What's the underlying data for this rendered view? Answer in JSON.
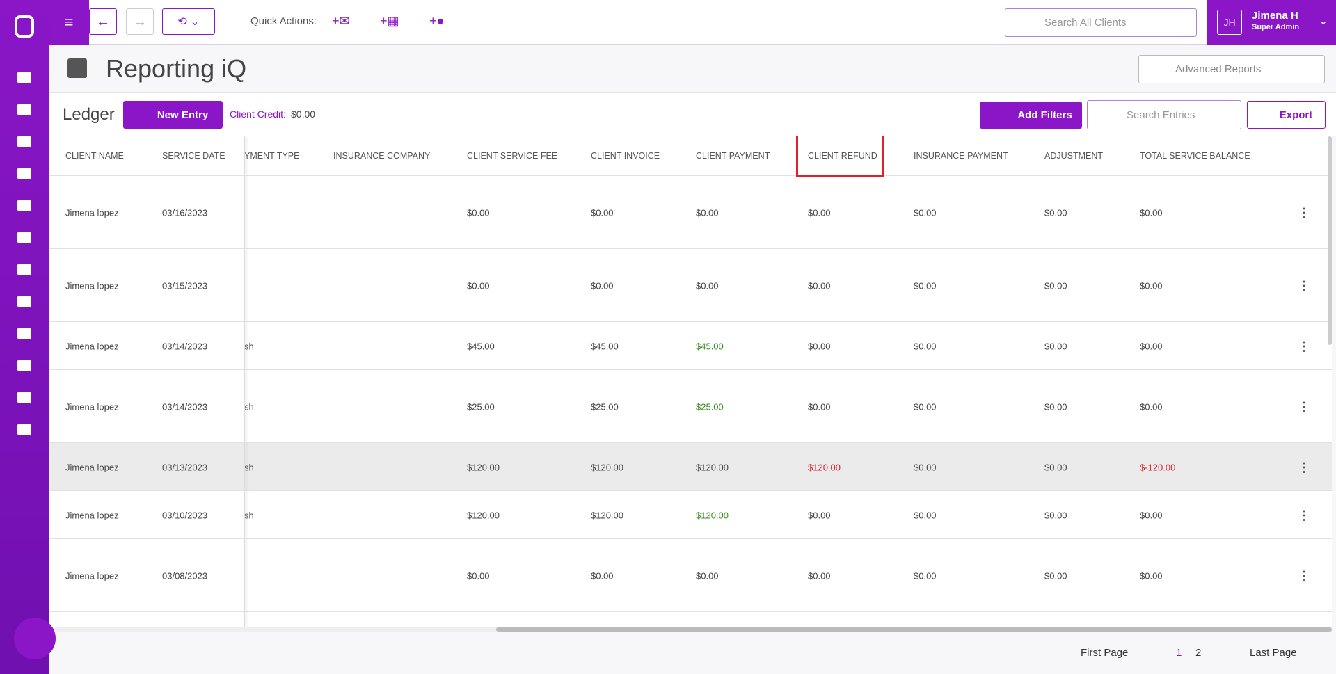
{
  "topbar": {
    "quick_actions": "Quick Actions:",
    "search_placeholder": "Search All Clients",
    "user_initials": "JH",
    "user_name": "Jimena H",
    "user_role": "Super Admin"
  },
  "page": {
    "title": "Reporting iQ",
    "report_select": "Advanced Reports"
  },
  "ledger": {
    "title": "Ledger",
    "new_entry": "New Entry",
    "client_credit_label": "Client Credit:",
    "client_credit_value": "$0.00",
    "add_filters": "Add Filters",
    "search_placeholder": "Search Entries",
    "export": "Export"
  },
  "table": {
    "columns": [
      "CLIENT NAME",
      "SERVICE DATE",
      "YMENT TYPE",
      "INSURANCE COMPANY",
      "CLIENT SERVICE FEE",
      "CLIENT INVOICE",
      "CLIENT PAYMENT",
      "CLIENT REFUND",
      "INSURANCE PAYMENT",
      "ADJUSTMENT",
      "TOTAL SERVICE BALANCE"
    ],
    "highlighted_column": 7,
    "rows": [
      {
        "client_name": "Jimena lopez",
        "service_date": "03/16/2023",
        "client_service_fee": "$0.00",
        "client_invoice": "$0.00",
        "client_payment": "$0.00",
        "client_refund": "$0.00",
        "insurance_payment": "$0.00",
        "adjustment": "$0.00",
        "total_service_balance": "$0.00"
      },
      {
        "client_name": "Jimena lopez",
        "service_date": "03/15/2023",
        "client_service_fee": "$0.00",
        "client_invoice": "$0.00",
        "client_payment": "$0.00",
        "client_refund": "$0.00",
        "insurance_payment": "$0.00",
        "adjustment": "$0.00",
        "total_service_balance": "$0.00"
      },
      {
        "client_name": "Jimena lopez",
        "service_date": "03/14/2023",
        "payment_type": "sh",
        "client_service_fee": "$45.00",
        "client_invoice": "$45.00",
        "client_payment": "$45.00",
        "client_refund": "$0.00",
        "insurance_payment": "$0.00",
        "adjustment": "$0.00",
        "total_service_balance": "$0.00"
      },
      {
        "client_name": "Jimena lopez",
        "service_date": "03/14/2023",
        "payment_type": "sh",
        "client_service_fee": "$25.00",
        "client_invoice": "$25.00",
        "client_payment": "$25.00",
        "client_refund": "$0.00",
        "insurance_payment": "$0.00",
        "adjustment": "$0.00",
        "total_service_balance": "$0.00"
      },
      {
        "client_name": "Jimena lopez",
        "service_date": "03/13/2023",
        "payment_type": "sh",
        "client_service_fee": "$120.00",
        "client_invoice": "$120.00",
        "client_payment": "$120.00",
        "client_refund": "$120.00",
        "insurance_payment": "$0.00",
        "adjustment": "$0.00",
        "total_service_balance": "$-120.00",
        "highlighted": true
      },
      {
        "client_name": "Jimena lopez",
        "service_date": "03/10/2023",
        "payment_type": "sh",
        "client_service_fee": "$120.00",
        "client_invoice": "$120.00",
        "client_payment": "$120.00",
        "client_refund": "$0.00",
        "insurance_payment": "$0.00",
        "adjustment": "$0.00",
        "total_service_balance": "$0.00"
      },
      {
        "client_name": "Jimena lopez",
        "service_date": "03/08/2023",
        "client_service_fee": "$0.00",
        "client_invoice": "$0.00",
        "client_payment": "$0.00",
        "client_refund": "$0.00",
        "insurance_payment": "$0.00",
        "adjustment": "$0.00",
        "total_service_balance": "$0.00"
      }
    ]
  },
  "pagination": {
    "first": "First Page",
    "pages": [
      "1",
      "2"
    ],
    "current": 0,
    "last": "Last Page"
  }
}
